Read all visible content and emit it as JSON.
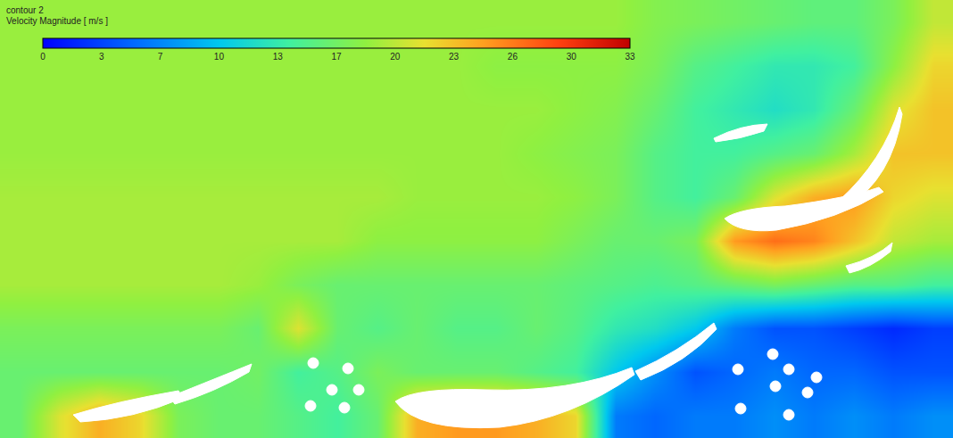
{
  "chart_data": {
    "type": "heatmap",
    "title": "contour 2",
    "tick_labels": false,
    "colorbar": {
      "title": "Velocity Magnitude [ m/s ]",
      "range": [
        0,
        33
      ],
      "ticks": [
        0,
        {
          "value": 3.3,
          "label": "3"
        },
        {
          "value": 6.6,
          "label": "7"
        },
        {
          "value": 9.9,
          "label": "10"
        },
        {
          "value": 13.2,
          "label": "13"
        },
        {
          "value": 16.5,
          "label": "17"
        },
        {
          "value": 19.8,
          "label": "20"
        },
        {
          "value": 23.1,
          "label": "23"
        },
        {
          "value": 26.4,
          "label": "26"
        },
        {
          "value": 29.7,
          "label": "30"
        },
        33
      ]
    },
    "z": [
      [
        18.5,
        18.5,
        18.5,
        18.5,
        18.5,
        18.5,
        18.5,
        18.5,
        18.5,
        18.5,
        18.5,
        18.5,
        18.5,
        18.5,
        18.5,
        18.5,
        17.5,
        17,
        16.5,
        16,
        15.5,
        15.5,
        17,
        20
      ],
      [
        18.5,
        18.5,
        18.5,
        18.5,
        18.5,
        18.5,
        18.5,
        18.5,
        18.5,
        18.5,
        18.5,
        18.5,
        18,
        18,
        18,
        18,
        17,
        15,
        14,
        13,
        13,
        14,
        18,
        22
      ],
      [
        18.5,
        18.5,
        18.5,
        18.5,
        18.5,
        18.5,
        18.5,
        18.5,
        18.5,
        18.5,
        18.5,
        18.5,
        18.5,
        18.5,
        18,
        17.5,
        16,
        14,
        13,
        12,
        13,
        16,
        21,
        23
      ],
      [
        18.5,
        18.5,
        18.5,
        18.5,
        18.5,
        18.5,
        18.5,
        18.5,
        18.5,
        18.5,
        18.5,
        18.5,
        18.5,
        18,
        17.5,
        17,
        15,
        14,
        14,
        15,
        16,
        19,
        23,
        23
      ],
      [
        19,
        19,
        19,
        19,
        19,
        19,
        19,
        19,
        19,
        19,
        18.5,
        18.5,
        18.5,
        18.5,
        18,
        17,
        15,
        14,
        16,
        21,
        24,
        25,
        22,
        21
      ],
      [
        19,
        19,
        19,
        19,
        19,
        19,
        19,
        19,
        19,
        18,
        18,
        18,
        18,
        18,
        17,
        16,
        16,
        17,
        25,
        27,
        26,
        23,
        20,
        19
      ],
      [
        19,
        19,
        19,
        19,
        19,
        19,
        18.5,
        17,
        16,
        16,
        16,
        16,
        16,
        16,
        15.5,
        15,
        14.5,
        15,
        16,
        17,
        16,
        15,
        15,
        14
      ],
      [
        17,
        17,
        17,
        17,
        17,
        17,
        16,
        21,
        16,
        15,
        16,
        15,
        15,
        16,
        15,
        13,
        12,
        10,
        6,
        4,
        4,
        3,
        2,
        3
      ],
      [
        16,
        16,
        16,
        16,
        16,
        16,
        16.5,
        14,
        15,
        17,
        16,
        16,
        16,
        15,
        14,
        10,
        7,
        4,
        5,
        6,
        5,
        5,
        4,
        4
      ],
      [
        16,
        21,
        24,
        22,
        17,
        16,
        16,
        15,
        14,
        16,
        24,
        25,
        25,
        24,
        22,
        6,
        5,
        6,
        6,
        7,
        6,
        7,
        6,
        7
      ]
    ]
  }
}
